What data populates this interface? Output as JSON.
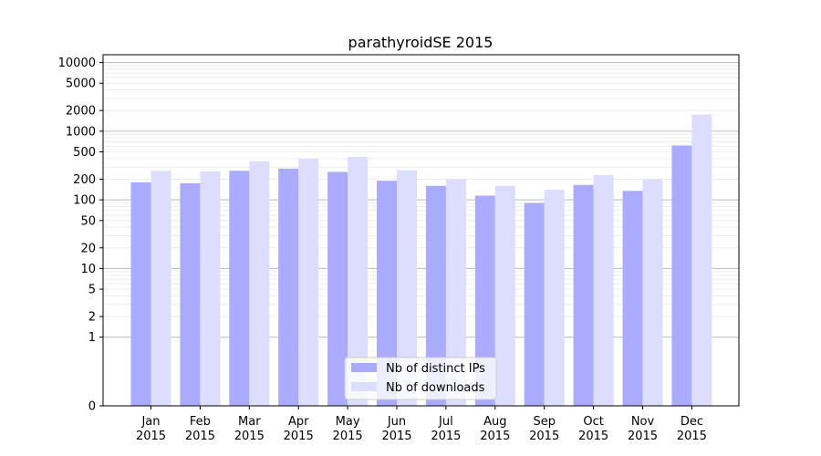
{
  "chart_data": {
    "type": "bar",
    "title": "parathyroidSE 2015",
    "xlabel": "",
    "ylabel": "",
    "y_scale": "symlog",
    "y_ticks": [
      0,
      1,
      2,
      5,
      10,
      20,
      50,
      100,
      200,
      500,
      1000,
      2000,
      5000,
      10000
    ],
    "y_tick_labels": [
      "0",
      "1",
      "2",
      "5",
      "10",
      "20",
      "50",
      "100",
      "200",
      "500",
      "1000",
      "2000",
      "5000",
      "10000"
    ],
    "categories": [
      {
        "month": "Jan",
        "year": "2015"
      },
      {
        "month": "Feb",
        "year": "2015"
      },
      {
        "month": "Mar",
        "year": "2015"
      },
      {
        "month": "Apr",
        "year": "2015"
      },
      {
        "month": "May",
        "year": "2015"
      },
      {
        "month": "Jun",
        "year": "2015"
      },
      {
        "month": "Jul",
        "year": "2015"
      },
      {
        "month": "Aug",
        "year": "2015"
      },
      {
        "month": "Sep",
        "year": "2015"
      },
      {
        "month": "Oct",
        "year": "2015"
      },
      {
        "month": "Nov",
        "year": "2015"
      },
      {
        "month": "Dec",
        "year": "2015"
      }
    ],
    "series": [
      {
        "name": "Nb of distinct IPs",
        "color": "#aaaaff",
        "values": [
          180,
          175,
          265,
          285,
          255,
          190,
          160,
          115,
          90,
          165,
          135,
          620
        ]
      },
      {
        "name": "Nb of downloads",
        "color": "#ddddff",
        "values": [
          265,
          260,
          365,
          395,
          425,
          270,
          200,
          160,
          140,
          230,
          200,
          1750
        ]
      }
    ],
    "grid": true,
    "legend_position": "bottom-center"
  }
}
